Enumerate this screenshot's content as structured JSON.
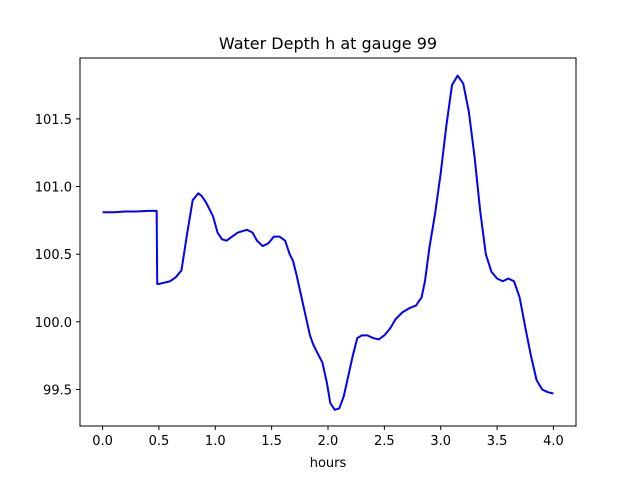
{
  "chart_data": {
    "type": "line",
    "title": "Water Depth h at gauge 99",
    "xlabel": "hours",
    "ylabel": "",
    "xlim": [
      -0.2,
      4.2
    ],
    "ylim": [
      99.23,
      101.95
    ],
    "xticks": [
      0.0,
      0.5,
      1.0,
      1.5,
      2.0,
      2.5,
      3.0,
      3.5,
      4.0
    ],
    "xtick_labels": [
      "0.0",
      "0.5",
      "1.0",
      "1.5",
      "2.0",
      "2.5",
      "3.0",
      "3.5",
      "4.0"
    ],
    "yticks": [
      99.5,
      100.0,
      100.5,
      101.0,
      101.5
    ],
    "ytick_labels": [
      "99.5",
      "100.0",
      "100.5",
      "101.0",
      "101.5"
    ],
    "grid": false,
    "series": [
      {
        "color": "#0000ff",
        "x": [
          0.0,
          0.1,
          0.2,
          0.3,
          0.4,
          0.48,
          0.485,
          0.5,
          0.6,
          0.65,
          0.7,
          0.75,
          0.8,
          0.85,
          0.88,
          0.92,
          0.98,
          1.02,
          1.06,
          1.1,
          1.15,
          1.2,
          1.28,
          1.33,
          1.37,
          1.42,
          1.47,
          1.52,
          1.57,
          1.62,
          1.66,
          1.69,
          1.72,
          1.76,
          1.8,
          1.84,
          1.87,
          1.9,
          1.95,
          1.99,
          2.02,
          2.06,
          2.1,
          2.14,
          2.18,
          2.22,
          2.26,
          2.3,
          2.35,
          2.4,
          2.45,
          2.5,
          2.55,
          2.6,
          2.66,
          2.72,
          2.78,
          2.83,
          2.86,
          2.9,
          2.95,
          3.0,
          3.05,
          3.1,
          3.15,
          3.2,
          3.25,
          3.3,
          3.35,
          3.4,
          3.45,
          3.5,
          3.55,
          3.6,
          3.65,
          3.7,
          3.75,
          3.8,
          3.85,
          3.9,
          3.95,
          4.0
        ],
        "y": [
          100.81,
          100.81,
          100.815,
          100.815,
          100.82,
          100.82,
          100.28,
          100.28,
          100.3,
          100.33,
          100.38,
          100.65,
          100.9,
          100.95,
          100.93,
          100.88,
          100.78,
          100.66,
          100.61,
          100.6,
          100.63,
          100.66,
          100.68,
          100.66,
          100.6,
          100.56,
          100.58,
          100.63,
          100.63,
          100.6,
          100.5,
          100.45,
          100.35,
          100.2,
          100.05,
          99.9,
          99.83,
          99.78,
          99.7,
          99.55,
          99.4,
          99.35,
          99.36,
          99.45,
          99.6,
          99.75,
          99.88,
          99.9,
          99.9,
          99.88,
          99.87,
          99.9,
          99.95,
          100.02,
          100.07,
          100.1,
          100.12,
          100.18,
          100.3,
          100.55,
          100.8,
          101.1,
          101.45,
          101.75,
          101.82,
          101.76,
          101.55,
          101.22,
          100.82,
          100.5,
          100.37,
          100.32,
          100.3,
          100.32,
          100.3,
          100.18,
          99.96,
          99.75,
          99.57,
          99.5,
          99.48,
          99.47
        ]
      }
    ]
  }
}
